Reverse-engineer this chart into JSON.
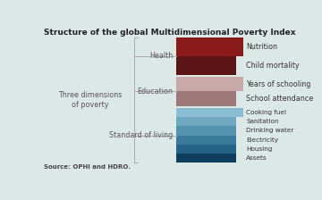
{
  "title": "Structure of the global Multidimensional Poverty Index",
  "source": "Source: OPHI and HDRO.",
  "background_color": "#dce8e6",
  "colors": {
    "Nutrition": "#8b1a1a",
    "Child mortality": "#5c1515",
    "Years of schooling": "#c8a8a8",
    "School attendance": "#9e7878",
    "Cooking fuel": "#89bdd3",
    "Sanitation": "#6fa8c0",
    "Drinking water": "#5592ae",
    "Electricity": "#3a7a9b",
    "Housing": "#256388",
    "Assets": "#0f3d5e"
  },
  "indicators_health": [
    "Nutrition",
    "Child mortality"
  ],
  "indicators_edu": [
    "Years of schooling",
    "School attendance"
  ],
  "indicators_std": [
    "Cooking fuel",
    "Sanitation",
    "Drinking water",
    "Electricity",
    "Housing",
    "Assets"
  ],
  "dimension_label": "Three dimensions\nof poverty",
  "dim_labels": [
    "Health",
    "Education",
    "Standard of living"
  ],
  "title_fontsize": 6.5,
  "source_fontsize": 5.0,
  "label_fontsize": 5.8,
  "dim_fontsize": 5.8,
  "indicator_fontsize_large": 5.8,
  "indicator_fontsize_small": 5.2
}
